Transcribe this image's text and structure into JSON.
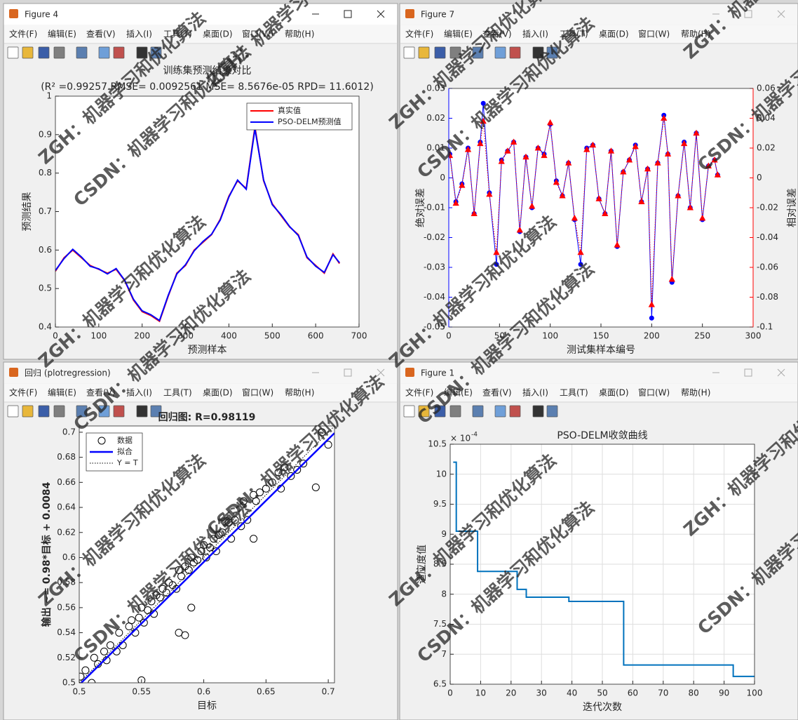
{
  "windows": [
    {
      "title": "Figure 4",
      "active": true
    },
    {
      "title": "Figure 7",
      "active": false
    },
    {
      "title": "回归 (plotregression)",
      "active": false
    },
    {
      "title": "Figure 1",
      "active": false
    }
  ],
  "menu": [
    "文件(F)",
    "编辑(E)",
    "查看(V)",
    "插入(I)",
    "工具(T)",
    "桌面(D)",
    "窗口(W)",
    "帮助(H)"
  ],
  "watermarks": [
    "ZGH：机器学习和优化算法",
    "CSDN：机器学习和优化算法"
  ],
  "chart_data": [
    {
      "type": "line",
      "title": "训练集预测结果对比",
      "subtitle": "(R² =0.99257 RMSE= 0.0092561 MSE= 8.5676e-05 RPD= 11.6012)",
      "xlabel": "预测样本",
      "ylabel": "预测结果",
      "xlim": [
        0,
        700
      ],
      "xticks": [
        0,
        100,
        200,
        300,
        400,
        500,
        600,
        700
      ],
      "ylim": [
        0.4,
        1
      ],
      "yticks": [
        0.4,
        0.5,
        0.6,
        0.7,
        0.8,
        0.9,
        1
      ],
      "legend": "upper right",
      "x": [
        0,
        20,
        40,
        60,
        80,
        100,
        120,
        140,
        160,
        180,
        200,
        220,
        240,
        260,
        280,
        300,
        320,
        340,
        360,
        380,
        400,
        420,
        440,
        460,
        480,
        500,
        520,
        540,
        560,
        580,
        600,
        620,
        640,
        655
      ],
      "series": [
        {
          "name": "真实值",
          "color": "#ff0000",
          "line_width": 2,
          "values": [
            0.545,
            0.58,
            0.6,
            0.58,
            0.56,
            0.55,
            0.54,
            0.55,
            0.52,
            0.47,
            0.44,
            0.43,
            0.415,
            0.48,
            0.54,
            0.56,
            0.6,
            0.62,
            0.64,
            0.68,
            0.74,
            0.78,
            0.76,
            0.92,
            0.78,
            0.72,
            0.69,
            0.66,
            0.64,
            0.58,
            0.56,
            0.54,
            0.59,
            0.565
          ]
        },
        {
          "name": "PSO-DELM预测值",
          "color": "#0000ff",
          "line_width": 2,
          "values": [
            0.547,
            0.578,
            0.602,
            0.582,
            0.558,
            0.551,
            0.538,
            0.552,
            0.521,
            0.472,
            0.442,
            0.432,
            0.417,
            0.482,
            0.538,
            0.562,
            0.598,
            0.622,
            0.641,
            0.678,
            0.738,
            0.782,
            0.758,
            0.915,
            0.782,
            0.718,
            0.692,
            0.661,
            0.638,
            0.582,
            0.558,
            0.542,
            0.588,
            0.567
          ]
        }
      ]
    },
    {
      "type": "line",
      "xlabel": "测试集样本编号",
      "ylabel": "绝对误差",
      "y2label": "相对误差",
      "ycolor": "#0000ff",
      "y2color": "#ff0000",
      "xlim": [
        0,
        300
      ],
      "xticks": [
        0,
        50,
        100,
        150,
        200,
        250,
        300
      ],
      "ylim": [
        -0.05,
        0.03
      ],
      "yticks": [
        -0.05,
        -0.04,
        -0.03,
        -0.02,
        -0.01,
        0,
        0.01,
        0.02,
        0.03
      ],
      "y2lim": [
        -0.1,
        0.06
      ],
      "y2ticks": [
        -0.1,
        -0.08,
        -0.06,
        -0.04,
        -0.02,
        0,
        0.02,
        0.04,
        0.06
      ],
      "x": [
        1,
        7,
        13,
        19,
        25,
        31,
        34,
        40,
        47,
        52,
        58,
        64,
        70,
        76,
        82,
        88,
        94,
        100,
        106,
        112,
        118,
        124,
        130,
        136,
        142,
        148,
        154,
        160,
        166,
        172,
        178,
        184,
        190,
        196,
        200,
        206,
        212,
        216,
        220,
        226,
        232,
        238,
        244,
        250,
        256,
        262,
        265
      ],
      "series": [
        {
          "color": "#0000ff",
          "marker": "o",
          "marker_fill": true,
          "line_width": 1,
          "values": [
            0.008,
            -0.008,
            -0.002,
            0.01,
            -0.012,
            0.012,
            0.025,
            -0.005,
            -0.029,
            0.006,
            0.009,
            0.012,
            -0.018,
            0.007,
            -0.01,
            0.01,
            0.008,
            0.018,
            -0.001,
            -0.006,
            0.005,
            -0.014,
            -0.029,
            0.01,
            0.011,
            -0.007,
            -0.012,
            0.009,
            -0.023,
            0.002,
            0.006,
            0.011,
            -0.008,
            0.003,
            -0.047,
            0.005,
            0.021,
            0.008,
            -0.035,
            -0.006,
            0.012,
            -0.01,
            0.015,
            -0.014,
            0.004,
            0.006,
            0.001
          ]
        },
        {
          "color": "#ff0000",
          "marker": "^",
          "marker_fill": true,
          "line_width": 1,
          "dash": "dotted",
          "axis": "y2",
          "values": [
            0.015,
            -0.017,
            -0.005,
            0.019,
            -0.024,
            0.023,
            0.038,
            -0.011,
            -0.05,
            0.011,
            0.018,
            0.024,
            -0.035,
            0.014,
            -0.019,
            0.02,
            0.015,
            0.037,
            -0.003,
            -0.012,
            0.01,
            -0.027,
            -0.05,
            0.019,
            0.022,
            -0.014,
            -0.024,
            0.018,
            -0.045,
            0.004,
            0.012,
            0.021,
            -0.016,
            0.006,
            -0.085,
            0.01,
            0.04,
            0.016,
            -0.068,
            -0.012,
            0.023,
            -0.02,
            0.03,
            -0.027,
            0.008,
            0.012,
            0.002
          ]
        }
      ]
    },
    {
      "type": "scatter",
      "title": "回归图: R=0.98119",
      "title_bold": true,
      "xlabel": "目标",
      "ylabel": "输出 ~= 0.98*目标 + 0.0084",
      "xlim": [
        0.5,
        0.705
      ],
      "xticks": [
        0.5,
        0.55,
        0.6,
        0.65,
        0.7
      ],
      "ylim": [
        0.5,
        0.705
      ],
      "yticks": [
        0.5,
        0.52,
        0.54,
        0.56,
        0.58,
        0.6,
        0.62,
        0.64,
        0.66,
        0.68,
        0.7
      ],
      "legend": "upper left",
      "series": [
        {
          "name": "数据",
          "color": "#000000",
          "marker": "o",
          "marker_fill": false,
          "line_width": 0,
          "x": [
            0.501,
            0.505,
            0.51,
            0.512,
            0.515,
            0.52,
            0.522,
            0.525,
            0.53,
            0.532,
            0.535,
            0.54,
            0.542,
            0.545,
            0.548,
            0.55,
            0.552,
            0.555,
            0.558,
            0.56,
            0.562,
            0.565,
            0.567,
            0.57,
            0.572,
            0.575,
            0.578,
            0.58,
            0.582,
            0.585,
            0.588,
            0.59,
            0.592,
            0.595,
            0.598,
            0.6,
            0.602,
            0.605,
            0.608,
            0.61,
            0.612,
            0.615,
            0.62,
            0.622,
            0.625,
            0.63,
            0.632,
            0.635,
            0.64,
            0.642,
            0.645,
            0.65,
            0.655,
            0.66,
            0.662,
            0.665,
            0.67,
            0.675,
            0.68,
            0.69,
            0.695,
            0.7,
            0.55,
            0.585,
            0.64,
            0.59,
            0.58
          ],
          "values": [
            0.505,
            0.51,
            0.5,
            0.52,
            0.515,
            0.525,
            0.518,
            0.53,
            0.525,
            0.54,
            0.53,
            0.545,
            0.55,
            0.54,
            0.552,
            0.56,
            0.548,
            0.558,
            0.565,
            0.555,
            0.57,
            0.568,
            0.575,
            0.572,
            0.58,
            0.578,
            0.575,
            0.59,
            0.585,
            0.593,
            0.59,
            0.6,
            0.596,
            0.598,
            0.605,
            0.61,
            0.6,
            0.608,
            0.615,
            0.605,
            0.618,
            0.62,
            0.628,
            0.615,
            0.63,
            0.625,
            0.645,
            0.63,
            0.65,
            0.645,
            0.652,
            0.655,
            0.66,
            0.668,
            0.655,
            0.672,
            0.665,
            0.67,
            0.675,
            0.656,
            0.7,
            0.69,
            0.502,
            0.538,
            0.615,
            0.56,
            0.54
          ]
        },
        {
          "name": "拟合",
          "color": "#0000ff",
          "line_width": 2.5,
          "x": [
            0.5,
            0.705
          ],
          "values": [
            0.4984,
            0.6993
          ]
        },
        {
          "name": "Y = T",
          "color": "#000000",
          "line_width": 1,
          "dash": "dotted",
          "x": [
            0.5,
            0.705
          ],
          "values": [
            0.5,
            0.705
          ]
        }
      ]
    },
    {
      "type": "line",
      "title": "PSO-DELM收敛曲线",
      "xlabel": "迭代次数",
      "ylabel": "适应度值",
      "y_exponent": {
        "base": "× 10",
        "power": "-4"
      },
      "grid": true,
      "step": "post",
      "xlim": [
        0,
        100
      ],
      "xticks": [
        0,
        10,
        20,
        30,
        40,
        50,
        60,
        70,
        80,
        90,
        100
      ],
      "ylim": [
        6.5,
        10.5
      ],
      "yticks": [
        6.5,
        7,
        7.5,
        8,
        8.5,
        9,
        9.5,
        10,
        10.5
      ],
      "x": [
        1,
        2,
        9,
        22,
        25,
        39,
        57,
        93,
        100
      ],
      "series": [
        {
          "color": "#0072bd",
          "line_width": 2,
          "values": [
            10.2,
            9.05,
            8.38,
            8.08,
            7.95,
            7.88,
            6.82,
            6.63,
            6.63
          ]
        }
      ]
    }
  ]
}
